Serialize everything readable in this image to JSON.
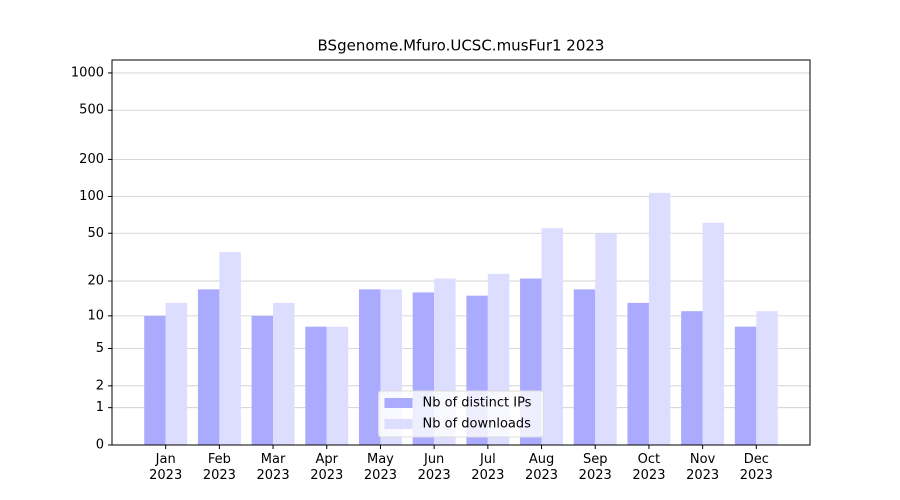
{
  "chart_data": {
    "type": "bar",
    "title": "BSgenome.Mfuro.UCSC.musFur1 2023",
    "categories": [
      "Jan\n2023",
      "Feb\n2023",
      "Mar\n2023",
      "Apr\n2023",
      "May\n2023",
      "Jun\n2023",
      "Jul\n2023",
      "Aug\n2023",
      "Sep\n2023",
      "Oct\n2023",
      "Nov\n2023",
      "Dec\n2023"
    ],
    "series": [
      {
        "name": "Nb of distinct IPs",
        "color": "#aaaaff",
        "values": [
          10,
          17,
          10,
          8,
          17,
          16,
          15,
          21,
          17,
          13,
          11,
          8
        ]
      },
      {
        "name": "Nb of downloads",
        "color": "#ddddff",
        "values": [
          13,
          35,
          13,
          8,
          17,
          21,
          23,
          55,
          50,
          107,
          61,
          11
        ]
      }
    ],
    "scale": "log1p",
    "ylim": [
      0,
      1272
    ],
    "yticks": [
      0,
      1,
      2,
      5,
      10,
      20,
      50,
      100,
      200,
      500,
      1000
    ],
    "grid": true,
    "legend": "lower center"
  }
}
